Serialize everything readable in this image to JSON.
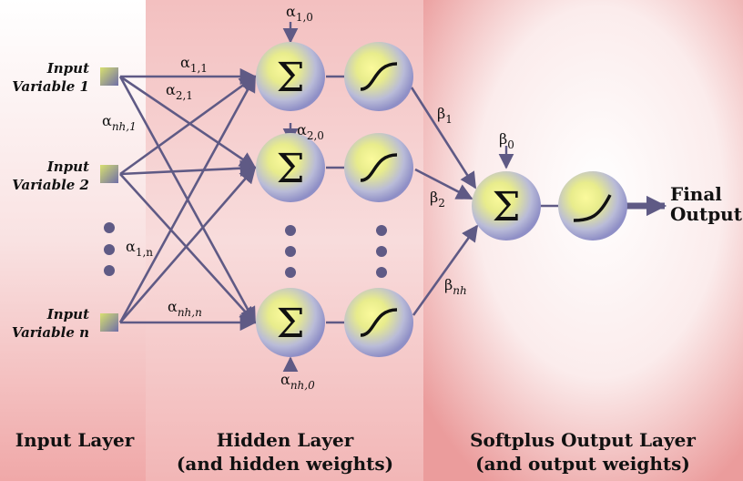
{
  "inputs": [
    {
      "line1": "Input",
      "line2": "Variable 1"
    },
    {
      "line1": "Input",
      "line2": "Variable 2"
    },
    {
      "line1": "Input",
      "line2": "Variable n"
    }
  ],
  "layers": {
    "input": "Input Layer",
    "hidden_line1": "Hidden Layer",
    "hidden_line2": "(and hidden weights)",
    "output_line1": "Softplus Output Layer",
    "output_line2": "(and output weights)"
  },
  "output_label": {
    "line1": "Final",
    "line2": "Output"
  },
  "symbols": {
    "sum": "Σ",
    "ellipsis_dot": "•"
  },
  "weights": {
    "alpha": "α",
    "beta": "β",
    "a10_sub": "1,0",
    "a20_sub": "2,0",
    "anh0_sub": "nh,0",
    "a11_sub": "1,1",
    "a21_sub": "2,1",
    "anh1_sub": "nh,1",
    "a1n_sub": "1,n",
    "anhn_sub": "nh,n",
    "b0_sub": "0",
    "b1_sub": "1",
    "b2_sub": "2",
    "bnh_sub": "nh"
  },
  "colors": {
    "arrow": "#5f5a85",
    "input_square": "#a9b850",
    "node_center": "#f6f58a",
    "node_edge": "#8e8fc8",
    "band_pink": "#f2b3b3"
  }
}
